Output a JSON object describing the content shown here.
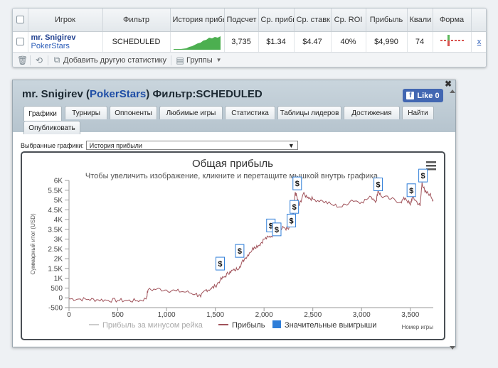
{
  "stats_table": {
    "headers": [
      "Игрок",
      "Фильтр",
      "История прибы",
      "Подсчет",
      "Ср. прибы",
      "Ср. ставк",
      "Ср. ROI",
      "Прибыль",
      "Квали",
      "Форма"
    ],
    "row": {
      "player_name": "mr. Snigirev",
      "player_site": "PokerStars",
      "filter": "SCHEDULED",
      "count": "3,735",
      "avg_profit": "$1.34",
      "avg_stake": "$4.47",
      "avg_roi": "40%",
      "profit": "$4,990",
      "qualified": "74",
      "remove": "x"
    },
    "footer": {
      "add_stats_label": "Добавить другую статистику",
      "groups_label": "Группы"
    }
  },
  "profile": {
    "title_name": "mr. Snigirev",
    "title_site": "PokerStars",
    "title_filter": "Фильтр:SCHEDULED",
    "like_label": "Like 0",
    "tabs": [
      "Графики",
      "Турниры",
      "Оппоненты",
      "Любимые игры",
      "Статистика",
      "Таблицы лидеров",
      "Достижения",
      "Найти",
      "Опубликовать"
    ],
    "selected_graphs_label": "Выбранные графики:",
    "selected_graph_value": "История прибыли"
  },
  "colors": {
    "profit_line": "#a0525a",
    "rake_line": "#cccccc",
    "big_win_marker": "#2f7ed8",
    "spark": "#4caf50"
  },
  "chart_data": {
    "type": "line",
    "title": "Общая прибыль",
    "subtitle": "Чтобы увеличить изображение, кликните и перетащите мышкой внутрь графика.",
    "xlabel": "Номер игры",
    "ylabel": "Суммарный итог (USD)",
    "xlim": [
      0,
      3735
    ],
    "ylim": [
      -500,
      6000
    ],
    "x_ticks": [
      "0",
      "500",
      "1,000",
      "1,500",
      "2,000",
      "2,500",
      "3,000",
      "3,500"
    ],
    "x_tick_values": [
      0,
      500,
      1000,
      1500,
      2000,
      2500,
      3000,
      3500
    ],
    "y_ticks": [
      "6K",
      "5.5K",
      "5K",
      "4.5K",
      "4K",
      "3.5K",
      "3K",
      "2.5K",
      "2K",
      "1.5K",
      "1K",
      "500",
      "0",
      "-500"
    ],
    "y_tick_values": [
      6000,
      5500,
      5000,
      4500,
      4000,
      3500,
      3000,
      2500,
      2000,
      1500,
      1000,
      500,
      0,
      -500
    ],
    "series": [
      {
        "name": "Прибыль",
        "x": [
          0,
          100,
          200,
          300,
          400,
          500,
          600,
          700,
          790,
          810,
          900,
          1000,
          1100,
          1200,
          1300,
          1350,
          1400,
          1450,
          1500,
          1550,
          1600,
          1650,
          1700,
          1750,
          1800,
          1850,
          1900,
          1950,
          2000,
          2050,
          2100,
          2150,
          2200,
          2250,
          2280,
          2300,
          2320,
          2340,
          2360,
          2400,
          2450,
          2500,
          2600,
          2700,
          2800,
          2900,
          3000,
          3100,
          3150,
          3170,
          3200,
          3300,
          3400,
          3450,
          3500,
          3520,
          3550,
          3600,
          3620,
          3650,
          3700,
          3735
        ],
        "y": [
          -50,
          -60,
          -80,
          -100,
          -120,
          -130,
          -140,
          -150,
          -60,
          400,
          450,
          400,
          350,
          300,
          200,
          50,
          400,
          450,
          600,
          900,
          1100,
          1350,
          1400,
          1600,
          2000,
          2300,
          2600,
          2700,
          3000,
          3100,
          3250,
          3400,
          3600,
          3500,
          3900,
          4300,
          5400,
          5100,
          4700,
          5300,
          5150,
          5050,
          4950,
          4750,
          4650,
          5000,
          4900,
          5150,
          4950,
          5500,
          5200,
          5050,
          4900,
          5100,
          4750,
          5150,
          5000,
          4700,
          5900,
          5400,
          5300,
          5000
        ]
      },
      {
        "name": "Прибыль за минусом рейка"
      }
    ],
    "big_wins_label": "Значительные выигрыши",
    "big_wins": [
      {
        "x": 1550,
        "y": 1350
      },
      {
        "x": 1750,
        "y": 2000
      },
      {
        "x": 2070,
        "y": 3300
      },
      {
        "x": 2130,
        "y": 3100
      },
      {
        "x": 2280,
        "y": 3550
      },
      {
        "x": 2310,
        "y": 4250
      },
      {
        "x": 2340,
        "y": 5450
      },
      {
        "x": 3170,
        "y": 5400
      },
      {
        "x": 3510,
        "y": 5100
      },
      {
        "x": 3630,
        "y": 5850
      }
    ]
  }
}
